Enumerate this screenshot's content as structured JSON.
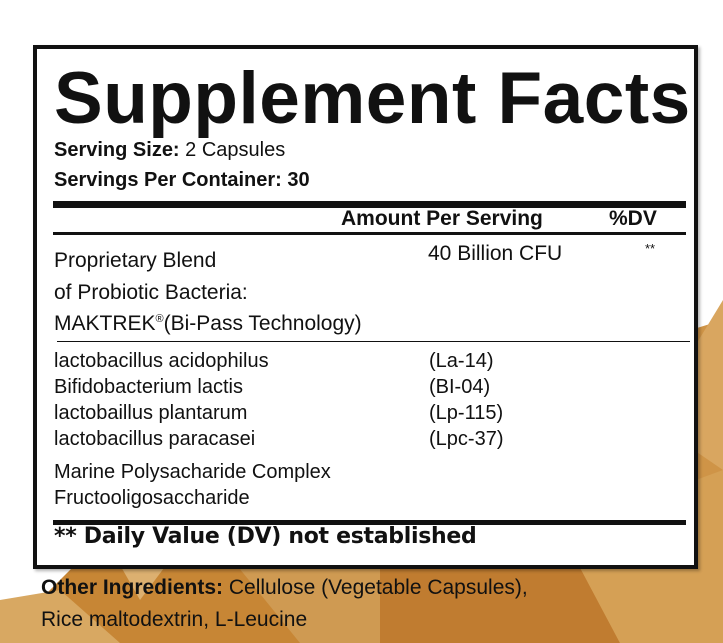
{
  "title": "Supplement Facts",
  "serving_size": {
    "label": "Serving Size:",
    "value": "2 Capsules"
  },
  "servings_per_container": {
    "label": "Servings Per Container:",
    "value": "30"
  },
  "header": {
    "amount": "Amount Per Serving",
    "dv": "%DV"
  },
  "blend": {
    "lines": [
      "Proprietary Blend",
      "of Probiotic Bacteria:"
    ],
    "brand": "MAKTREK",
    "brand_mark": "®",
    "brand_suffix": "(Bi-Pass Technology)",
    "amount": "40 Billion CFU",
    "dv": "**"
  },
  "ingredients": [
    {
      "name": "lactobacillus acidophilus",
      "strain": "(La-14)"
    },
    {
      "name": "Bifidobacterium lactis",
      "strain": "(BI-04)"
    },
    {
      "name": "lactobaillus plantarum",
      "strain": "(Lp-115)"
    },
    {
      "name": "lactobacillus paracasei",
      "strain": "(Lpc-37)"
    },
    {
      "name": "Marine Polysacharide Complex",
      "strain": ""
    },
    {
      "name": "Fructooligosaccharide",
      "strain": ""
    }
  ],
  "footnote": "** Daily Value (DV) not established",
  "other_ingredients": {
    "label": "Other Ingredients:",
    "line1": "Cellulose (Vegetable Capsules),",
    "line2": "Rice maltodextrin, L-Leucine"
  },
  "colors": {
    "background_accent": "#c98a3a",
    "ink": "#111111"
  }
}
